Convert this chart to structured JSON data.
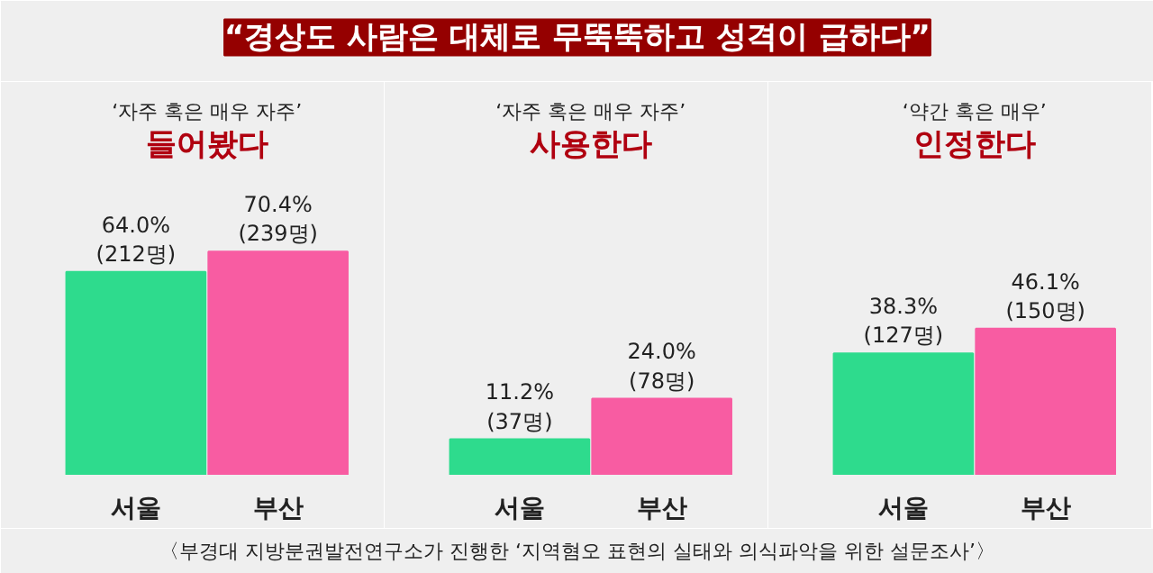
{
  "chart_data": [
    {
      "type": "bar",
      "subtitle": "‘자주 혹은 매우 자주’",
      "title": "들어봤다",
      "categories": [
        "서울",
        "부산"
      ],
      "values": [
        64.0,
        70.4
      ],
      "colors": [
        "#2edb8d",
        "#f85ca2"
      ],
      "value_labels": [
        "64.0%\n(212명)",
        "70.4%\n(239명)"
      ],
      "annotations": [
        "“경상도 사람은 대체로 무뚝뚝하고 성격이 급하다”"
      ]
    },
    {
      "type": "bar",
      "subtitle": "‘자주 혹은 매우 자주’",
      "title": "사용한다",
      "categories": [
        "서울",
        "부산"
      ],
      "values": [
        11.2,
        24.0
      ],
      "colors": [
        "#2edb8d",
        "#f85ca2"
      ],
      "value_labels": [
        "11.2%\n(37명)",
        "24.0%\n(78명)"
      ]
    },
    {
      "type": "bar",
      "subtitle": "‘약간 혹은 매우’",
      "title": "인정한다",
      "categories": [
        "서울",
        "부산"
      ],
      "values": [
        38.3,
        46.1
      ],
      "colors": [
        "#2edb8d",
        "#f85ca2"
      ],
      "value_labels": [
        "38.3%\n(127명)",
        "46.1%\n(150명)"
      ],
      "annotations": [
        "〈부경대 지방분권발전연구소가 진행한 ‘지역혐오 표현의 실태와 의식파악을 위한 설문조사’〉"
      ]
    }
  ]
}
